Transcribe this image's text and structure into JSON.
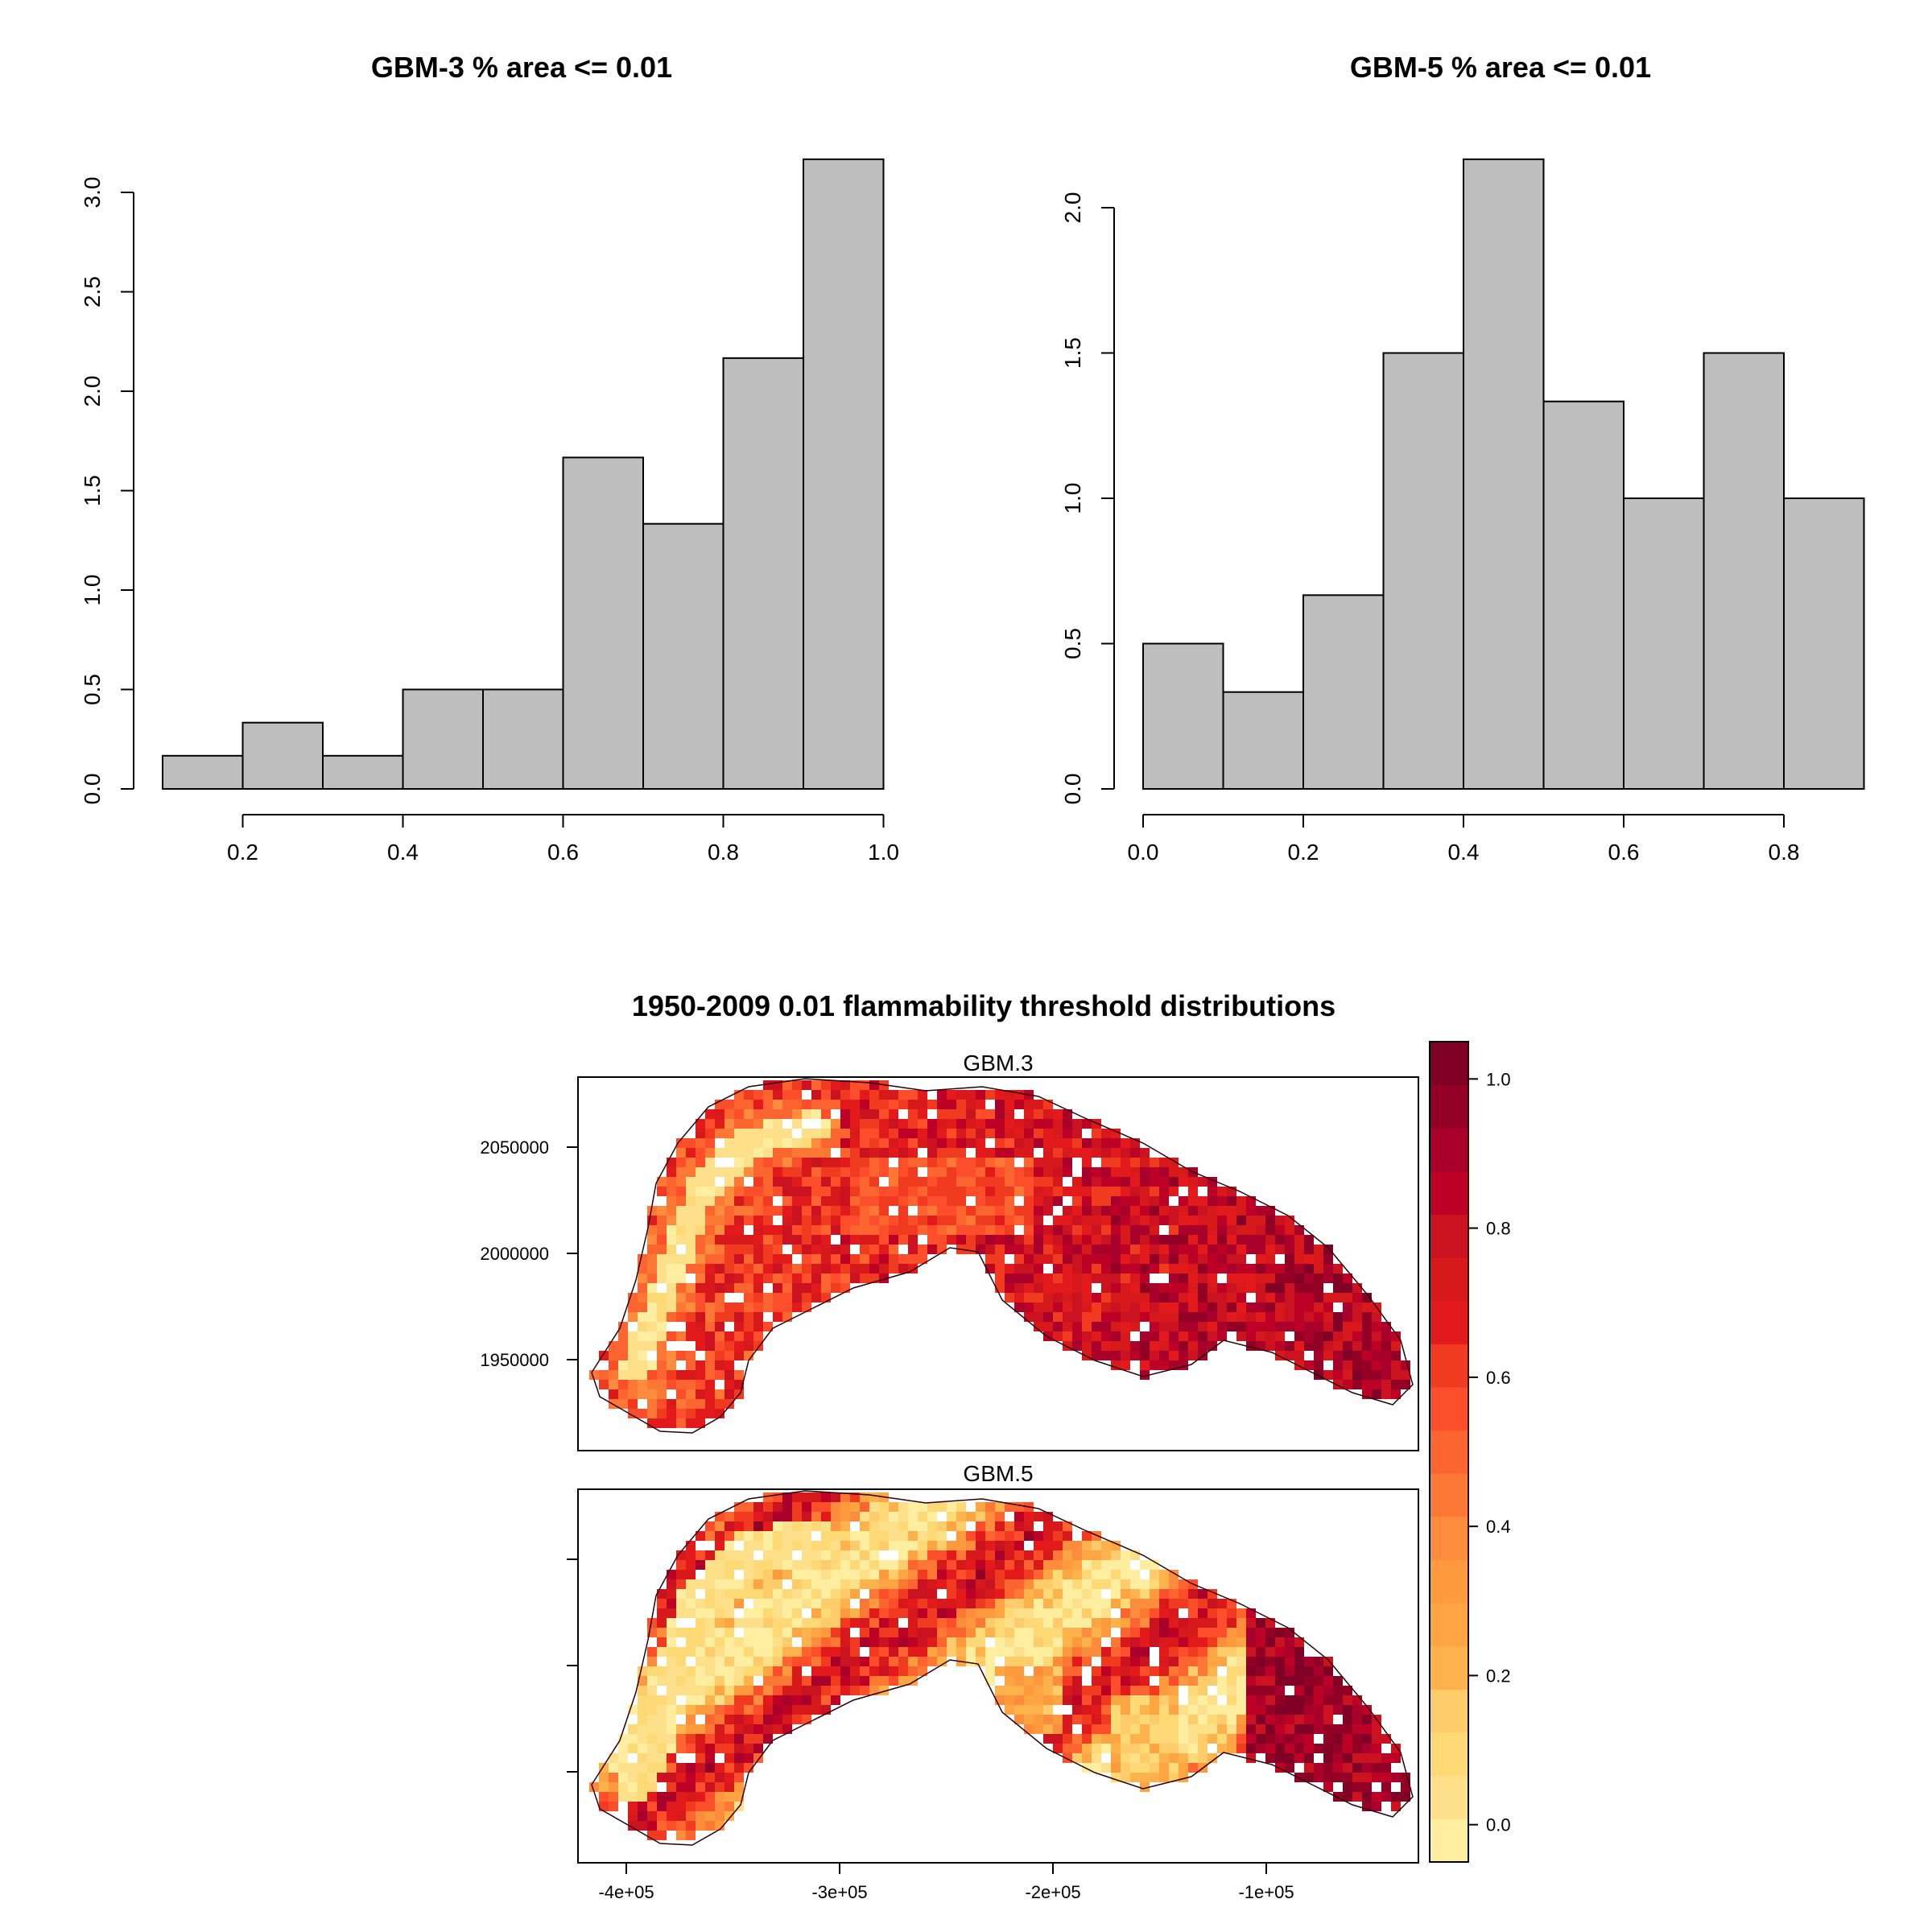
{
  "chart_data": [
    {
      "type": "bar",
      "subtype": "histogram",
      "title": "GBM-3 % area <= 0.01",
      "xlabel": "",
      "ylabel": "",
      "bin_edges": [
        0.1,
        0.2,
        0.3,
        0.4,
        0.5,
        0.6,
        0.7,
        0.8,
        0.9,
        1.0
      ],
      "values": [
        0.1667,
        0.3333,
        0.1667,
        0.5,
        0.5,
        1.6667,
        1.3333,
        2.1667,
        3.1667
      ],
      "xlim": [
        0.1,
        1.0
      ],
      "ylim": [
        0,
        3.0
      ],
      "x_ticks": [
        "0.2",
        "0.4",
        "0.6",
        "0.8",
        "1.0"
      ],
      "x_tick_values": [
        0.2,
        0.4,
        0.6,
        0.8,
        1.0
      ],
      "y_ticks": [
        "0.0",
        "0.5",
        "1.0",
        "1.5",
        "2.0",
        "2.5",
        "3.0"
      ],
      "y_tick_values": [
        0,
        0.5,
        1.0,
        1.5,
        2.0,
        2.5,
        3.0
      ],
      "bar_color": "#bebebe",
      "grid": false
    },
    {
      "type": "bar",
      "subtype": "histogram",
      "title": "GBM-5 % area <= 0.01",
      "xlabel": "",
      "ylabel": "",
      "bin_edges": [
        0.0,
        0.1,
        0.2,
        0.3,
        0.4,
        0.5,
        0.6,
        0.7,
        0.8,
        0.9
      ],
      "values": [
        0.5,
        0.3333,
        0.6667,
        1.5,
        2.1667,
        1.3333,
        1.0,
        1.5,
        1.0
      ],
      "xlim": [
        0.0,
        0.9
      ],
      "ylim": [
        0,
        2.0
      ],
      "x_ticks": [
        "0.0",
        "0.2",
        "0.4",
        "0.6",
        "0.8"
      ],
      "x_tick_values": [
        0.0,
        0.2,
        0.4,
        0.6,
        0.8
      ],
      "y_ticks": [
        "0.0",
        "0.5",
        "1.0",
        "1.5",
        "2.0"
      ],
      "y_tick_values": [
        0,
        0.5,
        1.0,
        1.5,
        2.0
      ],
      "bar_color": "#bebebe",
      "grid": false
    },
    {
      "type": "heatmap",
      "title": "1950-2009 0.01 flammability threshold distributions",
      "panels": [
        "GBM.3",
        "GBM.5"
      ],
      "y_ticks": [
        "2050000",
        "2000000",
        "1950000"
      ],
      "y_tick_values": [
        2050000,
        2000000,
        1950000
      ],
      "x_ticks": [
        "-4e+05",
        "-3e+05",
        "-2e+05",
        "-1e+05"
      ],
      "x_tick_values": [
        -400000,
        -300000,
        -200000,
        -100000
      ],
      "colorbar": {
        "ticks": [
          "0.0",
          "0.2",
          "0.4",
          "0.6",
          "0.8",
          "1.0"
        ],
        "tick_values": [
          0.0,
          0.2,
          0.4,
          0.6,
          0.8,
          1.0
        ],
        "range": [
          -0.05,
          1.05
        ],
        "colors": [
          "#FFEDA0",
          "#FEE08B",
          "#FED976",
          "#FECC6A",
          "#FEB24C",
          "#FDA443",
          "#FD9A3E",
          "#FD8D3C",
          "#FC7834",
          "#FC6530",
          "#FC4E2A",
          "#F03B20",
          "#E31A1C",
          "#D7191C",
          "#CB1220",
          "#BD0026",
          "#A8002A",
          "#930026",
          "#800026"
        ]
      }
    }
  ]
}
